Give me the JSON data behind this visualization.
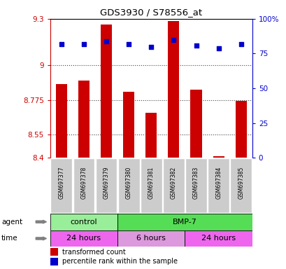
{
  "title": "GDS3930 / S78556_at",
  "samples": [
    "GSM697377",
    "GSM697378",
    "GSM697379",
    "GSM697380",
    "GSM697381",
    "GSM697382",
    "GSM697383",
    "GSM697384",
    "GSM697385"
  ],
  "bar_values": [
    8.88,
    8.9,
    9.265,
    8.83,
    8.69,
    9.285,
    8.84,
    8.41,
    8.77
  ],
  "bar_baseline": 8.4,
  "percentile_values": [
    82,
    82,
    84,
    82,
    80,
    85,
    81,
    79,
    82
  ],
  "ylim_left": [
    8.4,
    9.3
  ],
  "ylim_right": [
    0,
    100
  ],
  "yticks_left": [
    8.4,
    8.55,
    8.775,
    9.0,
    9.3
  ],
  "yticks_right": [
    0,
    25,
    50,
    75,
    100
  ],
  "ytick_labels_left": [
    "8.4",
    "8.55",
    "8.775",
    "9",
    "9.3"
  ],
  "ytick_labels_right": [
    "0",
    "25",
    "50",
    "75",
    "100%"
  ],
  "bar_color": "#cc0000",
  "dot_color": "#0000cc",
  "agent_groups": [
    {
      "label": "control",
      "start": 0,
      "end": 3,
      "color": "#99ee99"
    },
    {
      "label": "BMP-7",
      "start": 3,
      "end": 9,
      "color": "#55dd55"
    }
  ],
  "time_groups": [
    {
      "label": "24 hours",
      "start": 0,
      "end": 3,
      "color": "#ee66ee"
    },
    {
      "label": "6 hours",
      "start": 3,
      "end": 6,
      "color": "#dd99dd"
    },
    {
      "label": "24 hours",
      "start": 6,
      "end": 9,
      "color": "#ee66ee"
    }
  ],
  "legend_red_label": "transformed count",
  "legend_blue_label": "percentile rank within the sample",
  "xlabel_agent": "agent",
  "xlabel_time": "time",
  "grid_color": "#444444",
  "background_color": "#ffffff",
  "xticklabel_bg": "#cccccc",
  "left_axis_color": "#cc0000",
  "right_axis_color": "#0000cc",
  "bar_width": 0.5
}
